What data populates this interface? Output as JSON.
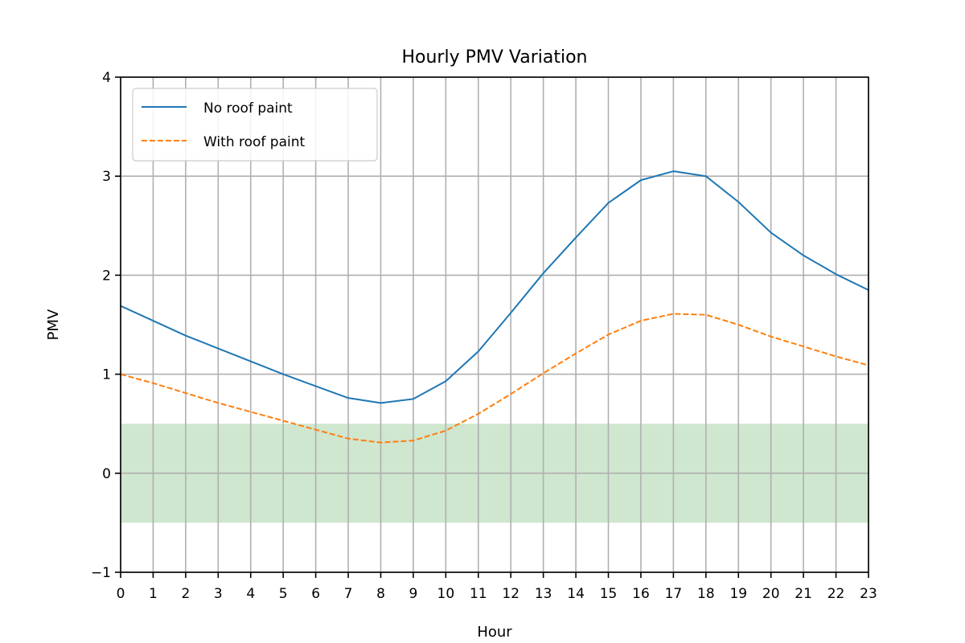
{
  "chart_data": {
    "type": "line",
    "title": "Hourly PMV Variation",
    "xlabel": "Hour",
    "ylabel": "PMV",
    "xlim": [
      0,
      23
    ],
    "ylim": [
      -1,
      4
    ],
    "x": [
      0,
      1,
      2,
      3,
      4,
      5,
      6,
      7,
      8,
      9,
      10,
      11,
      12,
      13,
      14,
      15,
      16,
      17,
      18,
      19,
      20,
      21,
      22,
      23
    ],
    "x_ticks": [
      "0",
      "1",
      "2",
      "3",
      "4",
      "5",
      "6",
      "7",
      "8",
      "9",
      "10",
      "11",
      "12",
      "13",
      "14",
      "15",
      "16",
      "17",
      "18",
      "19",
      "20",
      "21",
      "22",
      "23"
    ],
    "y_ticks": [
      -1,
      0,
      1,
      2,
      3,
      4
    ],
    "y_tick_labels": [
      "−1",
      "0",
      "1",
      "2",
      "3",
      "4"
    ],
    "grid": true,
    "legend_position": "top-left",
    "comfort_band": {
      "y0": -0.5,
      "y1": 0.5,
      "color": "#cfe6cf"
    },
    "series": [
      {
        "name": "No roof paint",
        "style": "solid",
        "color": "#1f77b4",
        "values": [
          1.69,
          1.54,
          1.39,
          1.26,
          1.13,
          1.0,
          0.88,
          0.76,
          0.71,
          0.75,
          0.93,
          1.23,
          1.62,
          2.02,
          2.38,
          2.73,
          2.96,
          3.05,
          3.0,
          2.74,
          2.43,
          2.2,
          2.01,
          1.85
        ]
      },
      {
        "name": "With roof paint",
        "style": "dashed",
        "color": "#ff7f0e",
        "values": [
          1.0,
          0.91,
          0.81,
          0.71,
          0.62,
          0.53,
          0.44,
          0.35,
          0.31,
          0.33,
          0.43,
          0.6,
          0.8,
          1.01,
          1.21,
          1.4,
          1.54,
          1.61,
          1.6,
          1.5,
          1.38,
          1.28,
          1.18,
          1.09
        ]
      }
    ]
  }
}
